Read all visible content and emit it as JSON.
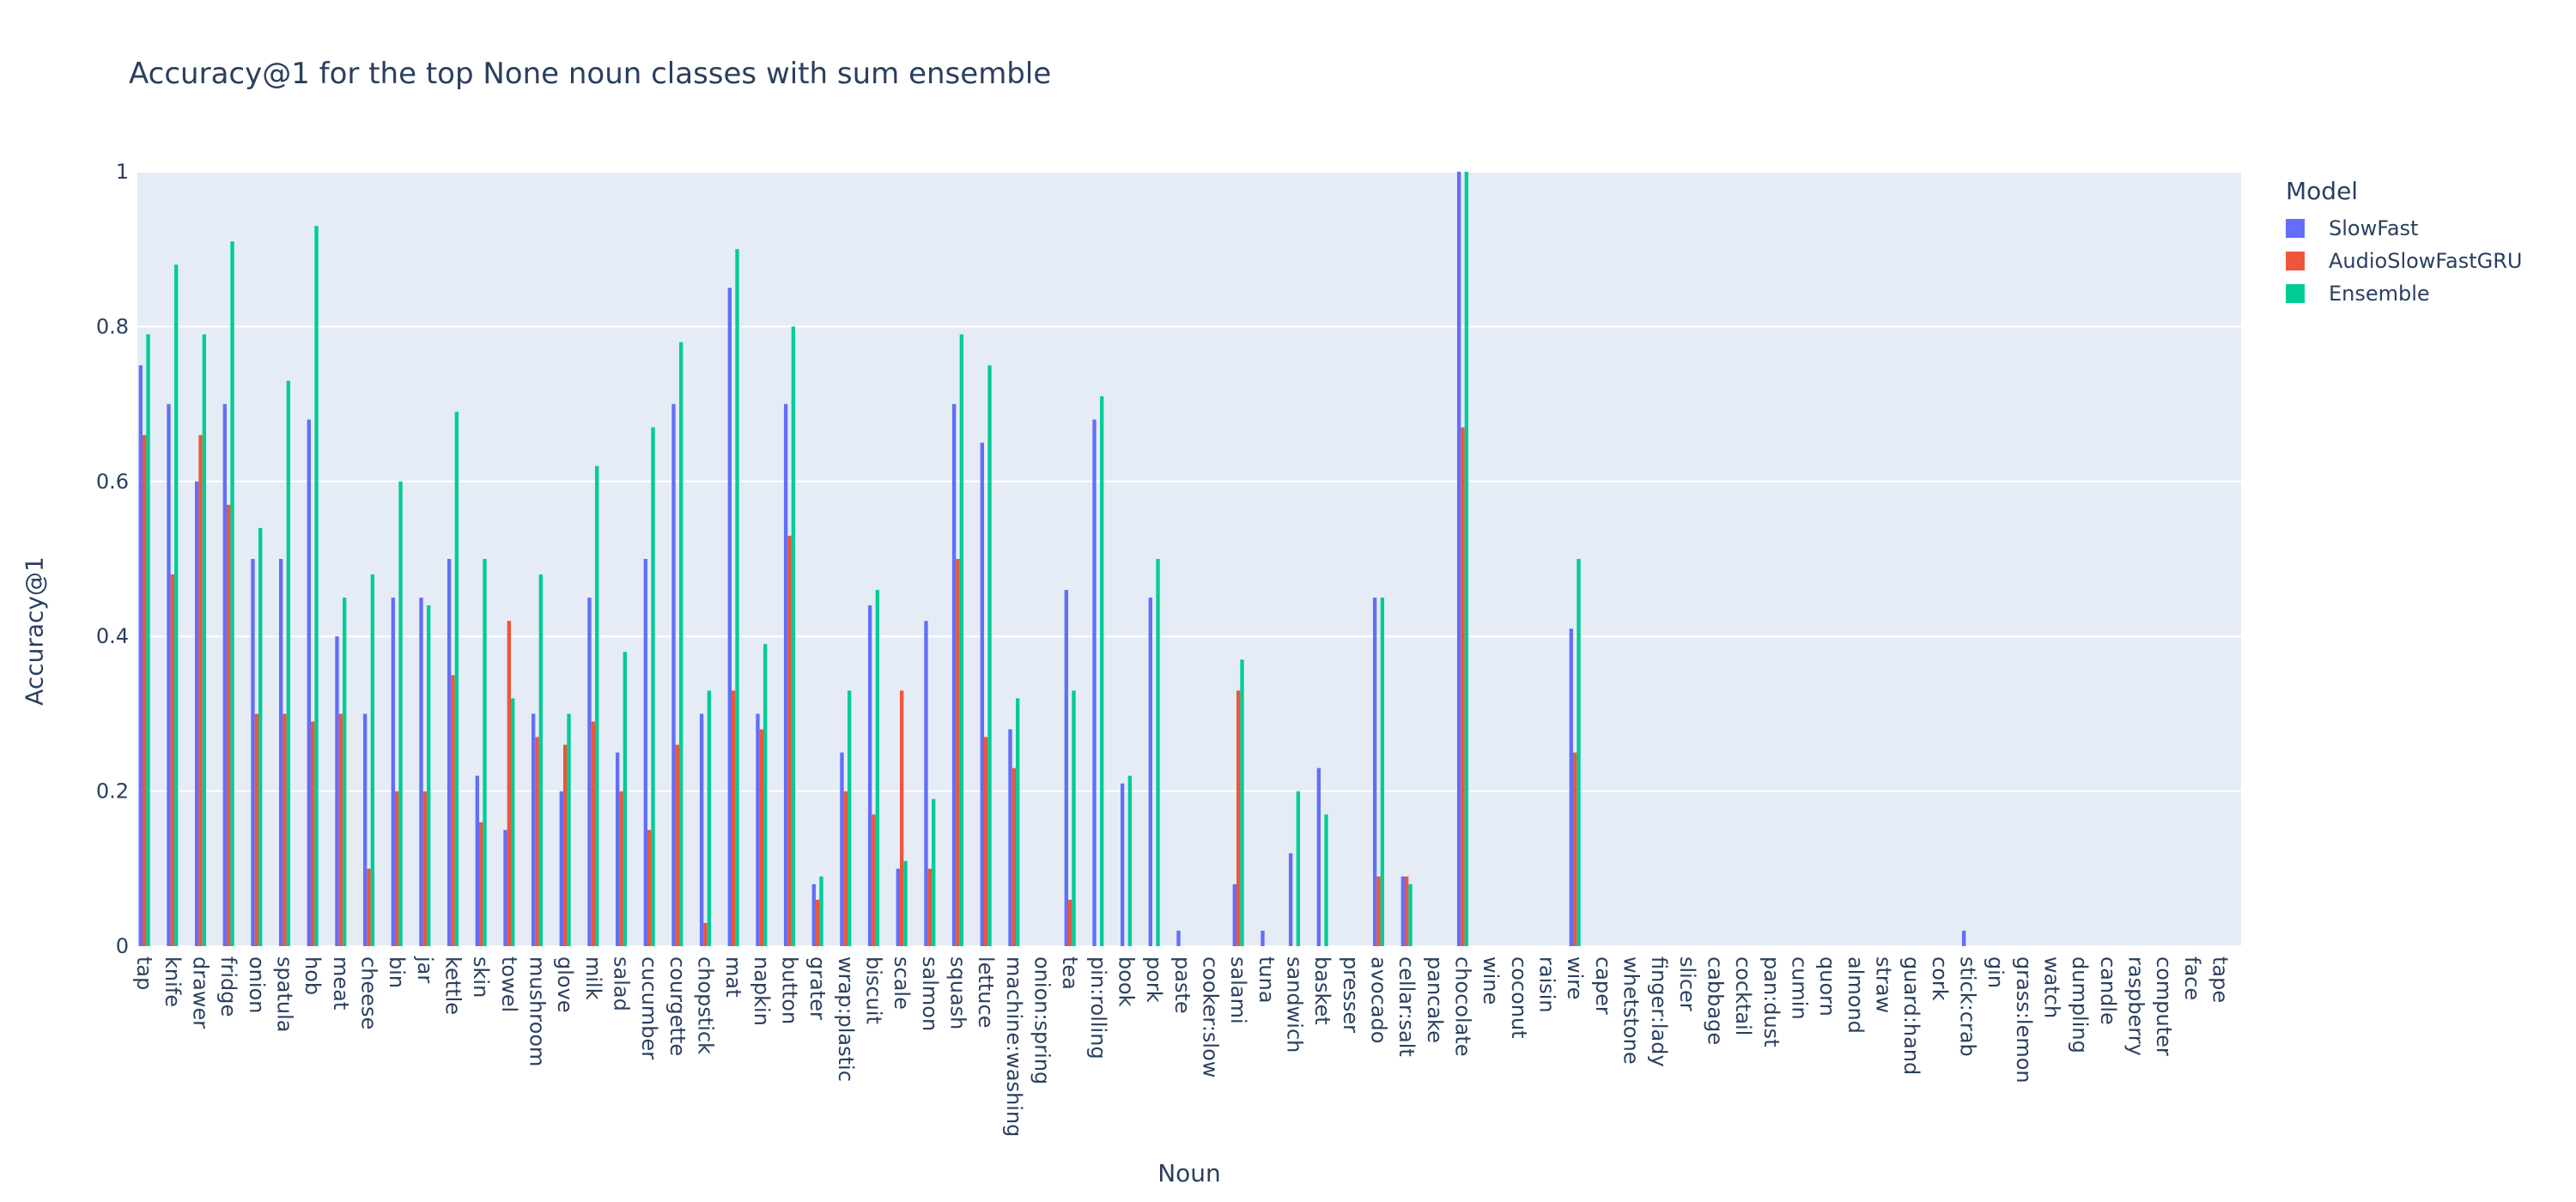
{
  "chart_data": {
    "type": "bar",
    "title": "Accuracy@1 for the top None noun classes with sum ensemble",
    "xlabel": "Noun",
    "ylabel": "Accuracy@1",
    "ylim": [
      0,
      1
    ],
    "yticks": [
      "0",
      "0.2",
      "0.4",
      "0.6",
      "0.8",
      "1"
    ],
    "grid": true,
    "legend_title": "Model",
    "legend_position": "top-right",
    "colors": {
      "plot_bg": "#e5ecf6",
      "grid": "#ffffff"
    },
    "categories": [
      "tap",
      "knife",
      "drawer",
      "fridge",
      "onion",
      "spatula",
      "hob",
      "meat",
      "cheese",
      "bin",
      "jar",
      "kettle",
      "skin",
      "towel",
      "mushroom",
      "glove",
      "milk",
      "salad",
      "cucumber",
      "courgette",
      "chopstick",
      "mat",
      "napkin",
      "button",
      "grater",
      "wrap:plastic",
      "biscuit",
      "scale",
      "salmon",
      "squash",
      "lettuce",
      "machine:washing",
      "onion:spring",
      "tea",
      "pin:rolling",
      "book",
      "pork",
      "paste",
      "cooker:slow",
      "salami",
      "tuna",
      "sandwich",
      "basket",
      "presser",
      "avocado",
      "cellar:salt",
      "pancake",
      "chocolate",
      "wine",
      "coconut",
      "raisin",
      "wire",
      "caper",
      "whetstone",
      "finger:lady",
      "slicer",
      "cabbage",
      "cocktail",
      "pan:dust",
      "cumin",
      "quorn",
      "almond",
      "straw",
      "guard:hand",
      "cork",
      "stick:crab",
      "gin",
      "grass:lemon",
      "watch",
      "dumpling",
      "candle",
      "raspberry",
      "computer",
      "face",
      "tape"
    ],
    "series": [
      {
        "name": "SlowFast",
        "color": "#636efa",
        "values": [
          0.75,
          0.7,
          0.6,
          0.7,
          0.5,
          0.5,
          0.68,
          0.4,
          0.3,
          0.45,
          0.45,
          0.5,
          0.22,
          0.15,
          0.3,
          0.2,
          0.45,
          0.25,
          0.5,
          0.7,
          0.3,
          0.85,
          0.3,
          0.7,
          0.08,
          0.25,
          0.44,
          0.1,
          0.42,
          0.7,
          0.65,
          0.28,
          0.0,
          0.46,
          0.68,
          0.21,
          0.45,
          0.02,
          0.0,
          0.08,
          0.02,
          0.12,
          0.23,
          0.0,
          0.45,
          0.09,
          0.0,
          1.0,
          0.0,
          0.0,
          0.0,
          0.41,
          0.0,
          0.0,
          0.0,
          0.0,
          0.0,
          0.0,
          0.0,
          0.0,
          0.0,
          0.0,
          0.0,
          0.0,
          0.0,
          0.02,
          0.0,
          0.0,
          0.0,
          0.0,
          0.0,
          0.0,
          0.0,
          0.0,
          0.0
        ]
      },
      {
        "name": "AudioSlowFastGRU",
        "color": "#ef553b",
        "values": [
          0.66,
          0.48,
          0.66,
          0.57,
          0.3,
          0.3,
          0.29,
          0.3,
          0.1,
          0.2,
          0.2,
          0.35,
          0.16,
          0.42,
          0.27,
          0.26,
          0.29,
          0.2,
          0.15,
          0.26,
          0.03,
          0.33,
          0.28,
          0.53,
          0.06,
          0.2,
          0.17,
          0.33,
          0.1,
          0.5,
          0.27,
          0.23,
          0.0,
          0.06,
          0.0,
          0.0,
          0.0,
          0.0,
          0.0,
          0.33,
          0.0,
          0.0,
          0.0,
          0.0,
          0.09,
          0.09,
          0.0,
          0.67,
          0.0,
          0.0,
          0.0,
          0.25,
          0.0,
          0.0,
          0.0,
          0.0,
          0.0,
          0.0,
          0.0,
          0.0,
          0.0,
          0.0,
          0.0,
          0.0,
          0.0,
          0.0,
          0.0,
          0.0,
          0.0,
          0.0,
          0.0,
          0.0,
          0.0,
          0.0,
          0.0
        ]
      },
      {
        "name": "Ensemble",
        "color": "#00cc96",
        "values": [
          0.79,
          0.88,
          0.79,
          0.91,
          0.54,
          0.73,
          0.93,
          0.45,
          0.48,
          0.6,
          0.44,
          0.69,
          0.5,
          0.32,
          0.48,
          0.3,
          0.62,
          0.38,
          0.67,
          0.78,
          0.33,
          0.9,
          0.39,
          0.8,
          0.09,
          0.33,
          0.46,
          0.11,
          0.19,
          0.79,
          0.75,
          0.32,
          0.0,
          0.33,
          0.71,
          0.22,
          0.5,
          0.0,
          0.0,
          0.37,
          0.0,
          0.2,
          0.17,
          0.0,
          0.45,
          0.08,
          0.0,
          1.0,
          0.0,
          0.0,
          0.0,
          0.5,
          0.0,
          0.0,
          0.0,
          0.0,
          0.0,
          0.0,
          0.0,
          0.0,
          0.0,
          0.0,
          0.0,
          0.0,
          0.0,
          0.0,
          0.0,
          0.0,
          0.0,
          0.0,
          0.0,
          0.0,
          0.0,
          0.0,
          0.0
        ]
      }
    ]
  }
}
